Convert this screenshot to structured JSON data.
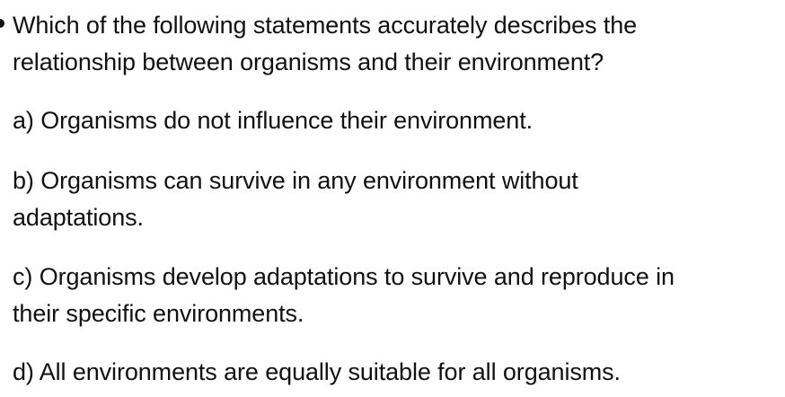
{
  "question": {
    "line1": "Which of the following statements accurately describes the",
    "line2": "relationship between organisms and their environment?"
  },
  "options": [
    {
      "lines": [
        "a) Organisms do not influence their environment."
      ]
    },
    {
      "lines": [
        "b) Organisms can survive in any environment without",
        "adaptations."
      ]
    },
    {
      "lines": [
        "c) Organisms develop adaptations to survive and reproduce in",
        "their specific environments."
      ]
    },
    {
      "lines": [
        "d) All environments are equally suitable for all organisms."
      ]
    }
  ]
}
